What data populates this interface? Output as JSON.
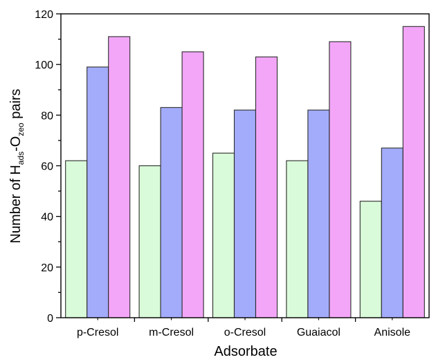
{
  "chart_data": {
    "type": "bar",
    "categories": [
      "p-Cresol",
      "m-Cresol",
      "o-Cresol",
      "Guaiacol",
      "Anisole"
    ],
    "series": [
      {
        "values": [
          62,
          60,
          65,
          62,
          46
        ],
        "color": "#d9fbd9"
      },
      {
        "values": [
          99,
          83,
          82,
          82,
          67
        ],
        "color": "#a3acfb"
      },
      {
        "values": [
          111,
          105,
          103,
          109,
          115
        ],
        "color": "#f3a6f8"
      }
    ],
    "xlabel": "Adsorbate",
    "ylabel": {
      "prefix": "Number of H",
      "sub1": "ads",
      "middle": "-O",
      "sub2": "zeo",
      "suffix": " pairs"
    },
    "ylim": [
      0,
      120
    ],
    "yticks": [
      "0",
      "20",
      "40",
      "60",
      "80",
      "100",
      "120"
    ],
    "grid": false,
    "legend": "none"
  }
}
